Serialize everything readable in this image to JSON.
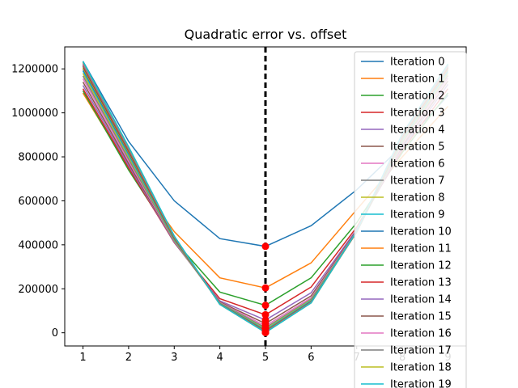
{
  "chart_data": {
    "type": "line",
    "title": "Quadratic error vs. offset",
    "xlabel": "",
    "ylabel": "",
    "x": [
      1,
      2,
      3,
      4,
      5,
      6,
      7,
      8,
      9
    ],
    "xlim": [
      0.6,
      9.4
    ],
    "ylim": [
      -60000,
      1300000
    ],
    "xticks": [
      "1",
      "2",
      "3",
      "4",
      "5",
      "6",
      "7",
      "8",
      "9"
    ],
    "yticks": [
      "0",
      "200000",
      "400000",
      "600000",
      "800000",
      "1000000",
      "1200000"
    ],
    "grid": false,
    "legend_position": "right",
    "vline": {
      "x": 5,
      "style": "dashed",
      "color": "#000000"
    },
    "marker_color": "#ff0000",
    "series": [
      {
        "name": "Iteration 0",
        "color": "#1f77b4",
        "values": [
          1235000,
          870000,
          600000,
          428000,
          393000,
          487000,
          650000,
          850000,
          1080000
        ]
      },
      {
        "name": "Iteration 1",
        "color": "#ff7f0e",
        "values": [
          1090000,
          750000,
          460000,
          250000,
          204000,
          318000,
          560000,
          800000,
          1030000
        ]
      },
      {
        "name": "Iteration 2",
        "color": "#2ca02c",
        "values": [
          1100000,
          740000,
          420000,
          185000,
          125000,
          250000,
          500000,
          820000,
          1090000
        ]
      },
      {
        "name": "Iteration 3",
        "color": "#d62728",
        "values": [
          1110000,
          750000,
          410000,
          155000,
          82000,
          208000,
          480000,
          830000,
          1110000
        ]
      },
      {
        "name": "Iteration 4",
        "color": "#9467bd",
        "values": [
          1125000,
          760000,
          410000,
          145000,
          58000,
          182000,
          470000,
          840000,
          1130000
        ]
      },
      {
        "name": "Iteration 5",
        "color": "#8c564b",
        "values": [
          1140000,
          770000,
          412000,
          140000,
          42000,
          168000,
          465000,
          850000,
          1145000
        ]
      },
      {
        "name": "Iteration 6",
        "color": "#e377c2",
        "values": [
          1155000,
          780000,
          415000,
          137000,
          31000,
          159000,
          462000,
          858000,
          1158000
        ]
      },
      {
        "name": "Iteration 7",
        "color": "#7f7f7f",
        "values": [
          1168000,
          790000,
          418000,
          135000,
          23000,
          153000,
          460000,
          865000,
          1170000
        ]
      },
      {
        "name": "Iteration 8",
        "color": "#bcbd22",
        "values": [
          1180000,
          800000,
          421000,
          134000,
          17000,
          149000,
          459000,
          872000,
          1180000
        ]
      },
      {
        "name": "Iteration 9",
        "color": "#17becf",
        "values": [
          1190000,
          808000,
          424000,
          133000,
          13000,
          146000,
          458000,
          878000,
          1188000
        ]
      },
      {
        "name": "Iteration 10",
        "color": "#1f77b4",
        "values": [
          1198000,
          815000,
          427000,
          132000,
          10000,
          143000,
          458000,
          883000,
          1195000
        ]
      },
      {
        "name": "Iteration 11",
        "color": "#ff7f0e",
        "values": [
          1205000,
          821000,
          429000,
          131000,
          8000,
          141000,
          458000,
          887000,
          1200000
        ]
      },
      {
        "name": "Iteration 12",
        "color": "#2ca02c",
        "values": [
          1211000,
          826000,
          431000,
          131000,
          6000,
          140000,
          458000,
          891000,
          1205000
        ]
      },
      {
        "name": "Iteration 13",
        "color": "#d62728",
        "values": [
          1216000,
          830000,
          433000,
          130000,
          5000,
          139000,
          459000,
          894000,
          1209000
        ]
      },
      {
        "name": "Iteration 14",
        "color": "#9467bd",
        "values": [
          1220000,
          834000,
          435000,
          130000,
          4000,
          138000,
          459000,
          897000,
          1212000
        ]
      },
      {
        "name": "Iteration 15",
        "color": "#8c564b",
        "values": [
          1224000,
          837000,
          436000,
          130000,
          3000,
          137000,
          460000,
          899000,
          1215000
        ]
      },
      {
        "name": "Iteration 16",
        "color": "#e377c2",
        "values": [
          1227000,
          840000,
          437000,
          129000,
          2500,
          137000,
          460000,
          901000,
          1217000
        ]
      },
      {
        "name": "Iteration 17",
        "color": "#7f7f7f",
        "values": [
          1230000,
          842000,
          438000,
          129000,
          2000,
          136000,
          461000,
          903000,
          1219000
        ]
      },
      {
        "name": "Iteration 18",
        "color": "#bcbd22",
        "values": [
          1232000,
          844000,
          439000,
          129000,
          1500,
          136000,
          461000,
          904000,
          1221000
        ]
      },
      {
        "name": "Iteration 19",
        "color": "#17becf",
        "values": [
          1234000,
          846000,
          440000,
          129000,
          1000,
          136000,
          462000,
          905000,
          1222000
        ]
      }
    ]
  }
}
